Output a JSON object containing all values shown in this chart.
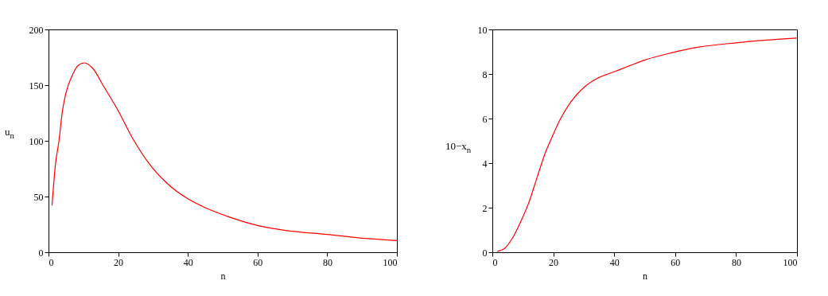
{
  "chart_data": [
    {
      "type": "line",
      "xlabel": "n",
      "ylabel": "u$_{n}$",
      "xlim": [
        0,
        100
      ],
      "xticks": [
        0,
        20,
        40,
        60,
        80,
        100
      ],
      "ylim": [
        0,
        200
      ],
      "yticks": [
        0,
        50,
        100,
        150,
        200
      ],
      "grid": false,
      "legend": false,
      "series": [
        {
          "color": "#ff0000",
          "x": [
            1,
            2,
            3,
            4,
            5,
            7,
            8.6,
            10.3,
            12.7,
            16,
            20,
            24,
            29,
            34,
            40,
            45,
            52,
            60,
            68,
            80,
            89,
            100
          ],
          "values": [
            42,
            79,
            100,
            127,
            143,
            160,
            168,
            170,
            165,
            148,
            127,
            103,
            79,
            62,
            48,
            40,
            31.5,
            24,
            19.6,
            16,
            12.9,
            10.5
          ]
        }
      ]
    },
    {
      "type": "line",
      "xlabel": "n",
      "ylabel": "10−x$_{n}$",
      "xlim": [
        0,
        100
      ],
      "xticks": [
        0,
        20,
        40,
        60,
        80,
        100
      ],
      "ylim": [
        0,
        10
      ],
      "yticks": [
        0,
        2,
        4,
        6,
        8,
        10
      ],
      "grid": false,
      "legend": false,
      "series": [
        {
          "color": "#ff0000",
          "x": [
            1.6,
            4.1,
            6.7,
            9.3,
            11.9,
            14.5,
            17.1,
            19.7,
            22.3,
            25.7,
            30.1,
            34.4,
            40,
            45.6,
            50.1,
            58.8,
            67.4,
            80,
            89.1,
            100
          ],
          "values": [
            0.04,
            0.18,
            0.66,
            1.37,
            2.2,
            3.28,
            4.36,
            5.2,
            5.97,
            6.74,
            7.4,
            7.8,
            8.1,
            8.4,
            8.63,
            8.95,
            9.2,
            9.4,
            9.51,
            9.61
          ]
        }
      ]
    }
  ]
}
